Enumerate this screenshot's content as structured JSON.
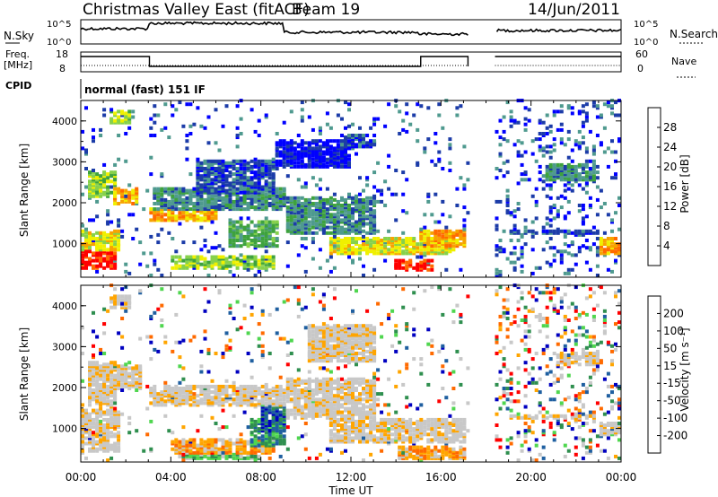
{
  "header": {
    "radar": "Christmas Valley East (fitACF)",
    "beam": "Beam 19",
    "date": "14/Jun/2011"
  },
  "top_panels": {
    "nsky_label": "N.Sky",
    "nsky_ticks": [
      "10^5",
      "10^0"
    ],
    "nsearch_label": "N.Search",
    "nsearch_ticks": [
      "10^5",
      "10^0"
    ],
    "freq_label": "Freq.",
    "freq_unit": "[MHz]",
    "freq_ticks": [
      "18",
      "8"
    ],
    "nave_label": "Nave",
    "nave_ticks": [
      "60",
      "0"
    ],
    "cpid_label": "CPID",
    "cpid_value": "normal (fast) 151 IF"
  },
  "colors": {
    "power": [
      "#0000ff",
      "#1c3ca8",
      "#4f9a8f",
      "#3ea23e",
      "#86d14b",
      "#f0f000",
      "#f7a300",
      "#ff6a00",
      "#ff0000"
    ],
    "velocity": [
      "#ff0000",
      "#ff6a00",
      "#ffa500",
      "#c8c8c8",
      "#c8c8c8",
      "#4fd64f",
      "#2f8f4f",
      "#1f5fa0",
      "#0000c0"
    ]
  },
  "chart_data": [
    {
      "type": "heatmap",
      "name": "power-panel",
      "ylabel": "Slant Range [km]",
      "xlabel": "",
      "y_ticks": [
        "1000",
        "2000",
        "3000",
        "4000"
      ],
      "x_ticks": [],
      "colorbar_label": "Power [dB]",
      "colorbar_ticks": [
        "4",
        "8",
        "12",
        "16",
        "20",
        "24",
        "28"
      ],
      "x_range_hours": [
        0,
        24
      ],
      "y_range_km": [
        180,
        4500
      ],
      "data_gap_hours": [
        17.2,
        18.4
      ]
    },
    {
      "type": "heatmap",
      "name": "velocity-panel",
      "ylabel": "Slant Range [km]",
      "xlabel": "Time UT",
      "y_ticks": [
        "1000",
        "2000",
        "3000",
        "4000"
      ],
      "x_ticks": [
        "00:00",
        "04:00",
        "08:00",
        "12:00",
        "16:00",
        "20:00",
        "00:00"
      ],
      "colorbar_label": "Velocity [m s⁻¹]",
      "colorbar_ticks": [
        "-200",
        "-100",
        "-50",
        "-15",
        "15",
        "50",
        "100",
        "200"
      ],
      "x_range_hours": [
        0,
        24
      ],
      "y_range_km": [
        180,
        4500
      ],
      "data_gap_hours": [
        17.2,
        18.4
      ]
    }
  ]
}
